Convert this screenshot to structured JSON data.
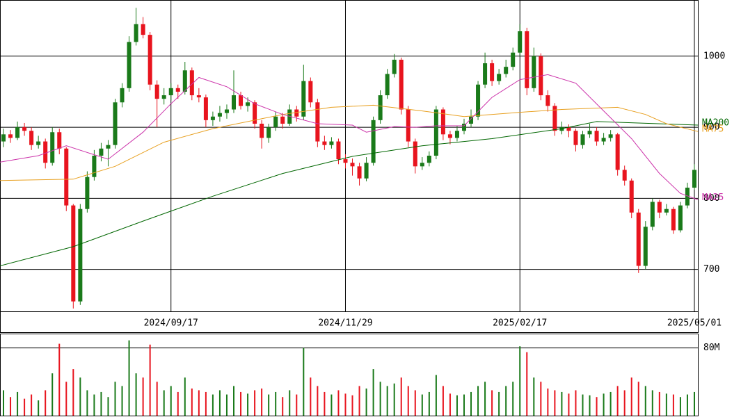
{
  "chart_data": [
    {
      "type": "candlestick",
      "up_color": "#1a7a1a",
      "down_color": "#e8141e",
      "xlim": [
        -0.5,
        99.5
      ],
      "xticks": [
        {
          "value": 24,
          "label": "2024/09/17"
        },
        {
          "value": 49,
          "label": "2024/11/29"
        },
        {
          "value": 74,
          "label": "2025/02/17"
        },
        {
          "value": 99,
          "label": "2025/05/01"
        }
      ],
      "ylim": [
        641,
        1079
      ],
      "yticks": [
        700,
        800,
        900,
        1000
      ],
      "grid": true,
      "open": [
        880,
        890,
        885,
        900,
        895,
        875,
        880,
        850,
        893,
        870,
        790,
        655,
        785,
        830,
        860,
        870,
        875,
        935,
        955,
        1020,
        1045,
        1030,
        960,
        940,
        945,
        955,
        950,
        980,
        945,
        942,
        910,
        915,
        920,
        925,
        945,
        930,
        935,
        905,
        885,
        900,
        915,
        905,
        925,
        915,
        965,
        935,
        880,
        875,
        880,
        855,
        850,
        845,
        828,
        850,
        910,
        945,
        975,
        995,
        925,
        880,
        845,
        850,
        860,
        925,
        890,
        885,
        895,
        905,
        915,
        960,
        990,
        965,
        975,
        985,
        1005,
        1035,
        955,
        1000,
        945,
        930,
        895,
        900,
        895,
        875,
        890,
        895,
        880,
        885,
        890,
        840,
        825,
        780,
        705,
        760,
        795,
        780,
        785,
        755,
        790,
        815
      ],
      "high": [
        898,
        896,
        908,
        906,
        900,
        888,
        884,
        900,
        898,
        872,
        792,
        792,
        838,
        868,
        878,
        882,
        940,
        962,
        1028,
        1068,
        1055,
        1034,
        966,
        955,
        962,
        960,
        992,
        984,
        955,
        946,
        922,
        930,
        932,
        980,
        950,
        942,
        938,
        910,
        905,
        922,
        920,
        932,
        930,
        988,
        970,
        940,
        888,
        886,
        884,
        862,
        856,
        850,
        858,
        915,
        952,
        982,
        1003,
        998,
        930,
        884,
        858,
        866,
        930,
        928,
        895,
        902,
        912,
        925,
        965,
        1005,
        995,
        982,
        995,
        1012,
        1045,
        1040,
        1012,
        1004,
        952,
        934,
        908,
        904,
        898,
        895,
        905,
        900,
        892,
        896,
        892,
        846,
        828,
        785,
        768,
        800,
        798,
        792,
        788,
        795,
        822,
        848
      ],
      "low": [
        872,
        878,
        882,
        888,
        868,
        870,
        842,
        846,
        862,
        782,
        645,
        650,
        780,
        825,
        852,
        845,
        870,
        928,
        950,
        1015,
        1025,
        952,
        900,
        932,
        938,
        940,
        946,
        938,
        935,
        900,
        902,
        908,
        912,
        920,
        925,
        922,
        898,
        870,
        878,
        895,
        898,
        902,
        908,
        910,
        928,
        872,
        868,
        870,
        848,
        842,
        832,
        818,
        824,
        846,
        905,
        940,
        970,
        918,
        872,
        835,
        840,
        845,
        855,
        882,
        876,
        880,
        890,
        900,
        910,
        955,
        958,
        960,
        970,
        980,
        1000,
        945,
        950,
        938,
        922,
        888,
        890,
        886,
        866,
        870,
        885,
        874,
        875,
        880,
        832,
        818,
        772,
        695,
        700,
        755,
        772,
        776,
        750,
        752,
        786,
        812
      ],
      "close": [
        890,
        885,
        900,
        895,
        875,
        880,
        850,
        893,
        870,
        790,
        655,
        785,
        830,
        860,
        870,
        875,
        935,
        955,
        1020,
        1045,
        1030,
        960,
        940,
        945,
        955,
        950,
        980,
        945,
        942,
        910,
        915,
        920,
        925,
        945,
        930,
        935,
        905,
        885,
        900,
        915,
        905,
        925,
        915,
        965,
        935,
        880,
        875,
        880,
        855,
        850,
        845,
        828,
        850,
        910,
        945,
        975,
        995,
        925,
        880,
        845,
        850,
        860,
        925,
        890,
        885,
        895,
        905,
        915,
        960,
        990,
        965,
        975,
        985,
        1005,
        1035,
        955,
        1000,
        945,
        930,
        895,
        900,
        895,
        875,
        890,
        895,
        880,
        885,
        890,
        840,
        825,
        780,
        705,
        760,
        795,
        780,
        785,
        755,
        790,
        815,
        840
      ],
      "series": [
        {
          "name": "MA200",
          "color": "#006600",
          "x": [
            -0.5,
            10,
            20,
            30,
            40,
            50,
            60,
            70,
            80,
            85,
            99.5
          ],
          "values": [
            705,
            732,
            768,
            803,
            835,
            859,
            874,
            884,
            898,
            908,
            903
          ]
        },
        {
          "name": "MA75",
          "color": "#e8a020",
          "x": [
            -0.5,
            10,
            16,
            23,
            30,
            40,
            47,
            53,
            60,
            66,
            74,
            80,
            88,
            92,
            95,
            99.5
          ],
          "values": [
            825,
            827,
            845,
            879,
            898,
            918,
            928,
            931,
            923,
            915,
            921,
            925,
            928,
            918,
            905,
            894
          ]
        },
        {
          "name": "MA25",
          "color": "#cc33aa",
          "x": [
            -0.5,
            5,
            9,
            15,
            20,
            24,
            28,
            32,
            36,
            40,
            45,
            50,
            52,
            56,
            59,
            62,
            66,
            70,
            74,
            78,
            82,
            86,
            90,
            94,
            97,
            99.5
          ],
          "values": [
            851,
            860,
            874,
            855,
            893,
            933,
            970,
            957,
            933,
            918,
            905,
            903,
            893,
            901,
            900,
            902,
            902,
            942,
            967,
            974,
            962,
            923,
            884,
            835,
            807,
            798
          ]
        }
      ]
    },
    {
      "type": "bar",
      "xlim": [
        -0.5,
        99.5
      ],
      "ylim": [
        0,
        97
      ],
      "yticks": [
        {
          "value": 80,
          "label": "80M"
        }
      ],
      "grid": true,
      "values": [
        30,
        22,
        28,
        20,
        25,
        18,
        30,
        50,
        85,
        40,
        55,
        45,
        30,
        25,
        28,
        22,
        40,
        35,
        89,
        50,
        45,
        84,
        40,
        30,
        35,
        28,
        45,
        32,
        30,
        28,
        25,
        30,
        25,
        35,
        28,
        26,
        30,
        32,
        25,
        28,
        22,
        30,
        25,
        80,
        45,
        35,
        28,
        25,
        30,
        26,
        24,
        35,
        32,
        55,
        40,
        35,
        38,
        45,
        35,
        30,
        25,
        28,
        48,
        35,
        26,
        24,
        25,
        28,
        35,
        40,
        30,
        28,
        35,
        40,
        82,
        75,
        45,
        40,
        32,
        30,
        28,
        26,
        30,
        25,
        24,
        22,
        26,
        28,
        35,
        30,
        45,
        40,
        35,
        30,
        28,
        26,
        25,
        22,
        25,
        28
      ]
    }
  ]
}
